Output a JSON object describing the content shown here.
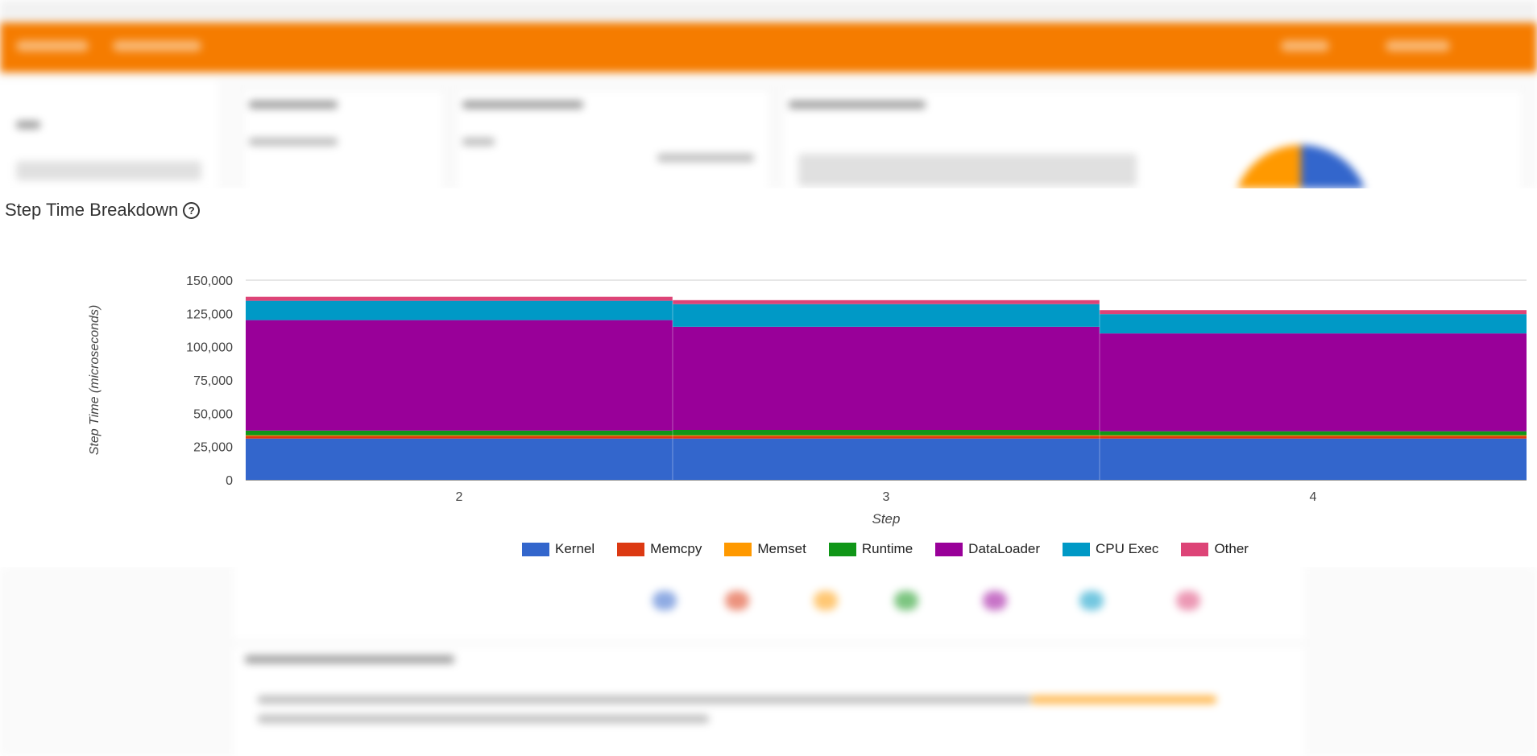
{
  "chart_panel": {
    "title": "Step Time Breakdown",
    "help_icon": "help-circle-icon"
  },
  "chart_data": {
    "type": "area",
    "stacked": true,
    "title": "Step Time Breakdown",
    "xlabel": "Step",
    "ylabel": "Step Time (microseconds)",
    "categories": [
      "2",
      "3",
      "4"
    ],
    "ylim": [
      0,
      150000
    ],
    "yticks": [
      0,
      25000,
      50000,
      75000,
      100000,
      125000,
      150000
    ],
    "ytick_labels": [
      "0",
      "25,000",
      "50,000",
      "75,000",
      "100,000",
      "125,000",
      "150,000"
    ],
    "grid": true,
    "legend_position": "bottom",
    "series": [
      {
        "name": "Kernel",
        "color": "#3366cc",
        "values": [
          31000,
          31000,
          31000
        ]
      },
      {
        "name": "Memcpy",
        "color": "#dc3912",
        "values": [
          2000,
          2000,
          2000
        ]
      },
      {
        "name": "Memset",
        "color": "#ff9900",
        "values": [
          500,
          500,
          500
        ]
      },
      {
        "name": "Runtime",
        "color": "#109618",
        "values": [
          3500,
          4000,
          3000
        ]
      },
      {
        "name": "DataLoader",
        "color": "#990099",
        "values": [
          83000,
          77500,
          73500
        ]
      },
      {
        "name": "CPU Exec",
        "color": "#0099c6",
        "values": [
          14500,
          17000,
          14500
        ]
      },
      {
        "name": "Other",
        "color": "#dd4477",
        "values": [
          3000,
          3000,
          3000
        ]
      }
    ]
  }
}
